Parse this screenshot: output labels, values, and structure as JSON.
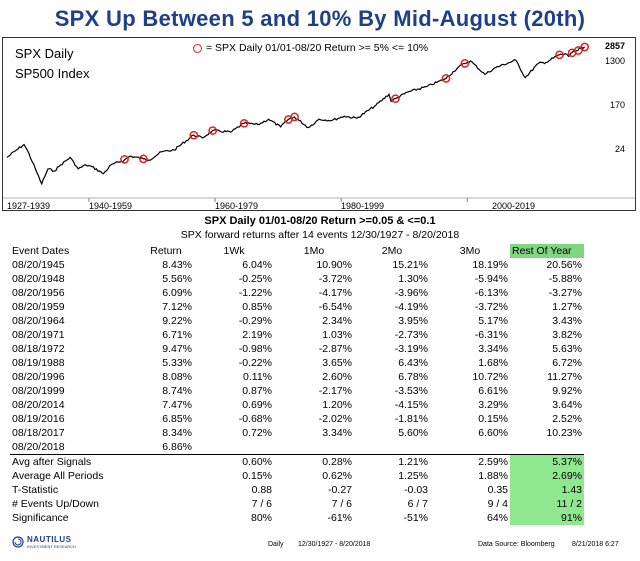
{
  "title": "SPX Up Between 5 and 10% By Mid-August (20th)",
  "chart_data": {
    "type": "line",
    "scale": "log",
    "labels": {
      "line1": "SPX Daily",
      "line2": "SP500 Index"
    },
    "legend": "= SPX Daily 01/01-08/20 Return >= 5% <= 10%",
    "yticks": [
      {
        "label": "2857",
        "value": 2857
      },
      {
        "label": "1300",
        "value": 1300
      },
      {
        "label": "170",
        "value": 170
      },
      {
        "label": "24",
        "value": 24
      }
    ],
    "xticks": [
      "1927-1939",
      "1940-1959",
      "1960-1979",
      "1980-1999",
      "2000-2019"
    ],
    "ylim": [
      4,
      3200
    ],
    "series": [
      {
        "name": "SPX",
        "points": [
          [
            1927.0,
            17
          ],
          [
            1928.5,
            24
          ],
          [
            1929.7,
            31
          ],
          [
            1930.5,
            20
          ],
          [
            1931.5,
            10
          ],
          [
            1932.5,
            5
          ],
          [
            1933.5,
            10
          ],
          [
            1934.5,
            9
          ],
          [
            1935.5,
            12
          ],
          [
            1937.0,
            17
          ],
          [
            1938.3,
            10
          ],
          [
            1939.5,
            12
          ],
          [
            1940.5,
            11
          ],
          [
            1942.3,
            8
          ],
          [
            1943.5,
            12
          ],
          [
            1945.6,
            15
          ],
          [
            1946.5,
            18
          ],
          [
            1948.6,
            16
          ],
          [
            1949.5,
            15
          ],
          [
            1951.5,
            22
          ],
          [
            1953.5,
            24
          ],
          [
            1956.6,
            48
          ],
          [
            1958.0,
            42
          ],
          [
            1959.6,
            59
          ],
          [
            1962.5,
            55
          ],
          [
            1964.6,
            83
          ],
          [
            1966.8,
            78
          ],
          [
            1968.5,
            100
          ],
          [
            1970.4,
            70
          ],
          [
            1971.6,
            99
          ],
          [
            1972.6,
            111
          ],
          [
            1974.8,
            68
          ],
          [
            1976.5,
            100
          ],
          [
            1978.5,
            95
          ],
          [
            1980.5,
            115
          ],
          [
            1982.5,
            105
          ],
          [
            1985.5,
            190
          ],
          [
            1987.6,
            320
          ],
          [
            1987.9,
            230
          ],
          [
            1990.5,
            350
          ],
          [
            1993.5,
            450
          ],
          [
            1996.6,
            660
          ],
          [
            1998.5,
            1100
          ],
          [
            1999.6,
            1330
          ],
          [
            2000.5,
            1500
          ],
          [
            2002.8,
            800
          ],
          [
            2004.5,
            1100
          ],
          [
            2007.7,
            1550
          ],
          [
            2009.2,
            690
          ],
          [
            2011.3,
            1340
          ],
          [
            2012.5,
            1400
          ],
          [
            2014.6,
            1990
          ],
          [
            2015.8,
            2050
          ],
          [
            2016.1,
            1850
          ],
          [
            2016.6,
            2180
          ],
          [
            2017.6,
            2450
          ],
          [
            2018.1,
            2850
          ],
          [
            2018.3,
            2600
          ],
          [
            2018.63,
            2857
          ]
        ]
      }
    ],
    "events": [
      {
        "date": "08/20/1945",
        "x": 1945.63,
        "y": 15.5
      },
      {
        "date": "08/20/1948",
        "x": 1948.63,
        "y": 15.9
      },
      {
        "date": "08/20/1956",
        "x": 1956.63,
        "y": 47.6
      },
      {
        "date": "08/20/1959",
        "x": 1959.63,
        "y": 59.1
      },
      {
        "date": "08/20/1964",
        "x": 1964.63,
        "y": 82.9
      },
      {
        "date": "08/20/1971",
        "x": 1971.63,
        "y": 98.9
      },
      {
        "date": "08/18/1972",
        "x": 1972.62,
        "y": 111.5
      },
      {
        "date": "08/19/1988",
        "x": 1988.63,
        "y": 260
      },
      {
        "date": "08/20/1996",
        "x": 1996.63,
        "y": 665
      },
      {
        "date": "08/20/1999",
        "x": 1999.63,
        "y": 1336
      },
      {
        "date": "08/20/2014",
        "x": 2014.63,
        "y": 1987
      },
      {
        "date": "08/19/2016",
        "x": 2016.63,
        "y": 2183
      },
      {
        "date": "08/18/2017",
        "x": 2017.63,
        "y": 2425
      },
      {
        "date": "08/20/2018",
        "x": 2018.63,
        "y": 2857
      }
    ]
  },
  "table": {
    "title": "SPX Daily 01/01-08/20 Return >=0.05 & <=0.1",
    "subtitle": "SPX forward returns after 14 events 12/30/1927 - 8/20/2018",
    "headers": [
      "Event Dates",
      "Return",
      "1Wk",
      "1Mo",
      "2Mo",
      "3Mo",
      "Rest Of Year"
    ],
    "rows": [
      [
        "08/20/1945",
        "8.43%",
        "6.04%",
        "10.90%",
        "15.21%",
        "18.19%",
        "20.56%"
      ],
      [
        "08/20/1948",
        "5.56%",
        "-0.25%",
        "-3.72%",
        "1.30%",
        "-5.94%",
        "-5.88%"
      ],
      [
        "08/20/1956",
        "6.09%",
        "-1.22%",
        "-4.17%",
        "-3.96%",
        "-6.13%",
        "-3.27%"
      ],
      [
        "08/20/1959",
        "7.12%",
        "0.85%",
        "-6.54%",
        "-4.19%",
        "-3.72%",
        "1.27%"
      ],
      [
        "08/20/1964",
        "9.22%",
        "-0.29%",
        "2.34%",
        "3.95%",
        "5.17%",
        "3.43%"
      ],
      [
        "08/20/1971",
        "6.71%",
        "2.19%",
        "1.03%",
        "-2.73%",
        "-6.31%",
        "3.82%"
      ],
      [
        "08/18/1972",
        "9.47%",
        "-0.98%",
        "-2.87%",
        "-3.19%",
        "3.34%",
        "5.63%"
      ],
      [
        "08/19/1988",
        "5.33%",
        "-0.22%",
        "3.65%",
        "6.43%",
        "1.68%",
        "6.72%"
      ],
      [
        "08/20/1996",
        "8.08%",
        "0.11%",
        "2.60%",
        "6.78%",
        "10.72%",
        "11.27%"
      ],
      [
        "08/20/1999",
        "8.74%",
        "0.87%",
        "-2.17%",
        "-3.53%",
        "6.61%",
        "9.92%"
      ],
      [
        "08/20/2014",
        "7.47%",
        "0.69%",
        "1.20%",
        "-4.15%",
        "3.29%",
        "3.64%"
      ],
      [
        "08/19/2016",
        "6.85%",
        "-0.68%",
        "-2.02%",
        "-1.81%",
        "0.15%",
        "2.52%"
      ],
      [
        "08/18/2017",
        "8.34%",
        "0.72%",
        "3.34%",
        "5.60%",
        "6.60%",
        "10.23%"
      ],
      [
        "08/20/2018",
        "6.86%",
        "",
        "",
        "",
        "",
        ""
      ]
    ],
    "summary": [
      [
        "Avg after Signals",
        "",
        "0.60%",
        "0.28%",
        "1.21%",
        "2.59%",
        "5.37%"
      ],
      [
        "Average All Periods",
        "",
        "0.15%",
        "0.62%",
        "1.25%",
        "1.88%",
        "2.69%"
      ],
      [
        "T-Statistic",
        "",
        "0.88",
        "-0.27",
        "-0.03",
        "0.35",
        "1.43"
      ],
      [
        "# Events Up/Down",
        "",
        "7 / 6",
        "7 / 6",
        "6 / 7",
        "9 / 4",
        "11 / 2"
      ],
      [
        "Significance",
        "",
        "80%",
        "-61%",
        "-51%",
        "64%",
        "91%"
      ]
    ]
  },
  "footer": {
    "logo_name": "NAUTILUS",
    "logo_sub": "INVESTMENT RESEARCH",
    "left": "Daily",
    "range": "12/30/1927 - 8/20/2018",
    "source": "Data Source: Bloomberg",
    "timestamp": "8/21/2018 6:27"
  },
  "colors": {
    "title": "#1f3f88",
    "line": "#000000",
    "marker": "#e02020",
    "highlight": "#7fd77f"
  }
}
